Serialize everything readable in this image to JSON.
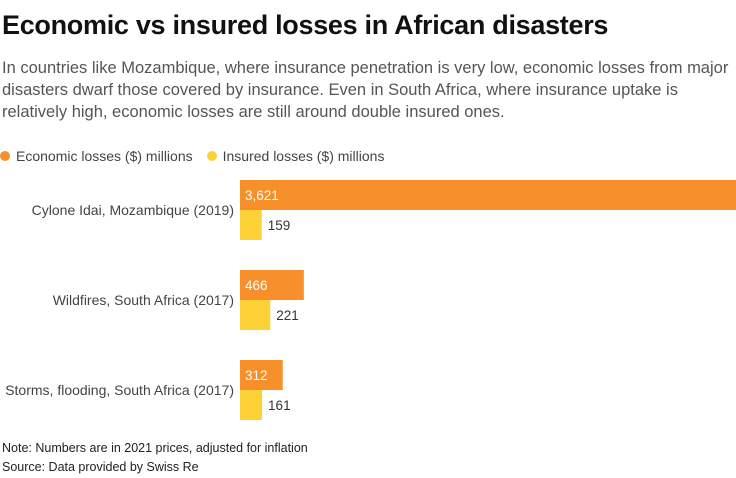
{
  "title": "Economic vs insured losses in African disasters",
  "subtitle": "In countries like Mozambique, where insurance penetration is very low, economic losses from major disasters dwarf those covered by insurance. Even in South Africa, where insurance uptake is relatively high, economic losses are still around double insured ones.",
  "legend": {
    "economic": "Economic losses ($) millions",
    "insured": "Insured losses ($) millions"
  },
  "colors": {
    "economic": "#f7902b",
    "insured": "#fdd237"
  },
  "chart_data": {
    "type": "bar",
    "orientation": "horizontal",
    "categories": [
      "Cylone Idai, Mozambique (2019)",
      "Wildfires, South Africa (2017)",
      "Storms, flooding, South Africa (2017)"
    ],
    "series": [
      {
        "name": "Economic losses ($) millions",
        "values": [
          3621,
          466,
          312
        ],
        "labels": [
          "3,621",
          "466",
          "312"
        ]
      },
      {
        "name": "Insured losses ($) millions",
        "values": [
          159,
          221,
          161
        ],
        "labels": [
          "159",
          "221",
          "161"
        ]
      }
    ],
    "xlim": [
      0,
      3621
    ],
    "grid": false,
    "legend_position": "top-left"
  },
  "note": "Note: Numbers are in 2021 prices, adjusted for inflation",
  "source": "Source: Data provided by Swiss Re"
}
